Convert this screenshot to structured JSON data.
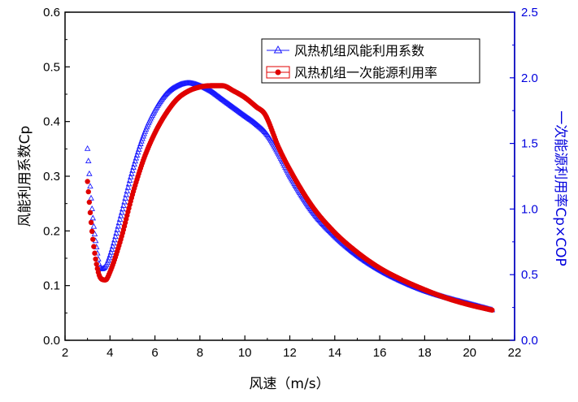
{
  "chart_data": {
    "type": "scatter",
    "xlabel": "风速（m/s）",
    "ylabel": "风能利用系数Cp",
    "y2label": "一次能源利用率Cp×COP",
    "xlim": [
      2,
      22
    ],
    "ylim": [
      0,
      0.6
    ],
    "y2lim": [
      0,
      2.5
    ],
    "xticks": [
      "2",
      "4",
      "6",
      "8",
      "10",
      "12",
      "14",
      "16",
      "18",
      "20",
      "22"
    ],
    "yticks": [
      "0.0",
      "0.1",
      "0.2",
      "0.3",
      "0.4",
      "0.5",
      "0.6"
    ],
    "y2ticks": [
      "0.0",
      "0.5",
      "1.0",
      "1.5",
      "2.0",
      "2.5"
    ],
    "legend_position": "top-right",
    "colors": {
      "cp": "#1a1aff",
      "primary": "#e00000",
      "right_axis": "#0000dd",
      "axis": "#000000"
    },
    "series": [
      {
        "name": "风热机组风能利用系数",
        "axis": "left",
        "marker": "triangle",
        "x": [
          3.0,
          3.2,
          3.4,
          3.6,
          3.8,
          4.0,
          4.5,
          5.0,
          5.5,
          6.0,
          6.5,
          7.0,
          7.5,
          8.0,
          8.5,
          9.0,
          9.5,
          10.0,
          10.5,
          11.0,
          11.5,
          12.0,
          13.0,
          14.0,
          15.0,
          16.0,
          17.0,
          18.0,
          19.0,
          20.0,
          21.0
        ],
        "y": [
          0.35,
          0.24,
          0.17,
          0.13,
          0.135,
          0.155,
          0.23,
          0.31,
          0.375,
          0.42,
          0.45,
          0.465,
          0.47,
          0.465,
          0.455,
          0.44,
          0.425,
          0.41,
          0.395,
          0.375,
          0.34,
          0.3,
          0.235,
          0.19,
          0.155,
          0.128,
          0.107,
          0.09,
          0.077,
          0.066,
          0.055
        ]
      },
      {
        "name": "风热机组一次能源利用率",
        "axis": "right",
        "marker": "circle",
        "x": [
          3.0,
          3.2,
          3.4,
          3.6,
          3.8,
          4.0,
          4.5,
          5.0,
          5.5,
          6.0,
          6.5,
          7.0,
          7.5,
          8.0,
          8.5,
          9.0,
          9.5,
          10.0,
          10.5,
          10.9,
          11.5,
          12.0,
          13.0,
          14.0,
          15.0,
          16.0,
          17.0,
          18.0,
          19.0,
          20.0,
          21.0
        ],
        "y": [
          1.21,
          0.83,
          0.58,
          0.47,
          0.46,
          0.52,
          0.78,
          1.11,
          1.38,
          1.58,
          1.73,
          1.84,
          1.9,
          1.93,
          1.94,
          1.94,
          1.9,
          1.85,
          1.78,
          1.72,
          1.47,
          1.3,
          1.02,
          0.82,
          0.67,
          0.55,
          0.46,
          0.385,
          0.32,
          0.27,
          0.23
        ]
      }
    ]
  }
}
